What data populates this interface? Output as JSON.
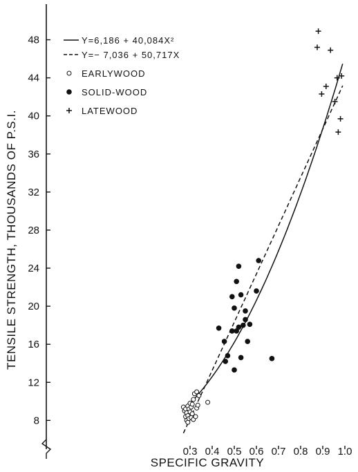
{
  "chart_data": {
    "type": "scatter",
    "xlabel": "SPECIFIC GRAVITY",
    "ylabel": "TENSILE STRENGTH, THOUSANDS OF P.S.I.",
    "xlim": [
      0.25,
      1.0
    ],
    "ylim": [
      6,
      49
    ],
    "x_ticks": [
      0.3,
      0.4,
      0.5,
      0.6,
      0.7,
      0.8,
      0.9,
      1.0
    ],
    "x_tick_labels": [
      "0.3",
      "0.4",
      "0.5",
      "0.6",
      "0.7",
      "0.8",
      "0.9",
      "1.0"
    ],
    "y_ticks": [
      8,
      12,
      16,
      20,
      24,
      28,
      32,
      36,
      40,
      44,
      48
    ],
    "y_tick_labels": [
      "8",
      "12",
      "16",
      "20",
      "24",
      "28",
      "32",
      "36",
      "40",
      "44",
      "48"
    ],
    "y_axis_break": true,
    "grid": false,
    "legend_position": "top-left",
    "curves": [
      {
        "label": "Y=6,186 + 40,084X²",
        "style": "solid",
        "form": "quadratic",
        "a": 6.186,
        "b": 40.084,
        "x_range": [
          0.27,
          0.99
        ]
      },
      {
        "label": "Y=− 7,036 + 50,717X",
        "style": "dashed",
        "form": "linear",
        "a": -7.036,
        "b": 50.717,
        "x_range": [
          0.27,
          0.99
        ]
      }
    ],
    "series": [
      {
        "name": "EARLYWOOD",
        "marker": "open-circle",
        "points": [
          [
            0.27,
            9.4
          ],
          [
            0.275,
            9.0
          ],
          [
            0.28,
            8.4
          ],
          [
            0.28,
            9.2
          ],
          [
            0.285,
            8.0
          ],
          [
            0.285,
            8.8
          ],
          [
            0.29,
            7.8
          ],
          [
            0.29,
            9.5
          ],
          [
            0.29,
            8.5
          ],
          [
            0.295,
            9.2
          ],
          [
            0.295,
            8.2
          ],
          [
            0.3,
            9.8
          ],
          [
            0.3,
            8.9
          ],
          [
            0.305,
            9.4
          ],
          [
            0.305,
            8.3
          ],
          [
            0.31,
            9.7
          ],
          [
            0.31,
            8.7
          ],
          [
            0.315,
            10.2
          ],
          [
            0.315,
            8.1
          ],
          [
            0.32,
            10.8
          ],
          [
            0.325,
            8.4
          ],
          [
            0.33,
            11.0
          ],
          [
            0.33,
            9.3
          ],
          [
            0.335,
            9.6
          ],
          [
            0.34,
            10.6
          ],
          [
            0.38,
            9.9
          ]
        ]
      },
      {
        "name": "SOLID-WOOD",
        "marker": "filled-circle",
        "points": [
          [
            0.43,
            17.7
          ],
          [
            0.455,
            16.3
          ],
          [
            0.46,
            14.2
          ],
          [
            0.47,
            14.8
          ],
          [
            0.49,
            21.0
          ],
          [
            0.49,
            17.4
          ],
          [
            0.5,
            19.8
          ],
          [
            0.5,
            13.3
          ],
          [
            0.51,
            22.6
          ],
          [
            0.51,
            17.4
          ],
          [
            0.52,
            24.2
          ],
          [
            0.52,
            17.8
          ],
          [
            0.53,
            21.2
          ],
          [
            0.53,
            14.6
          ],
          [
            0.54,
            18.0
          ],
          [
            0.55,
            19.5
          ],
          [
            0.55,
            18.6
          ],
          [
            0.56,
            16.3
          ],
          [
            0.57,
            18.1
          ],
          [
            0.6,
            21.6
          ],
          [
            0.61,
            24.8
          ],
          [
            0.67,
            14.5
          ]
        ]
      },
      {
        "name": "LATEWOOD",
        "marker": "plus",
        "points": [
          [
            0.875,
            47.2
          ],
          [
            0.88,
            48.9
          ],
          [
            0.895,
            42.3
          ],
          [
            0.915,
            43.1
          ],
          [
            0.935,
            46.9
          ],
          [
            0.955,
            41.5
          ],
          [
            0.965,
            44.0
          ],
          [
            0.97,
            38.3
          ],
          [
            0.98,
            39.7
          ],
          [
            0.985,
            44.2
          ]
        ]
      }
    ]
  }
}
